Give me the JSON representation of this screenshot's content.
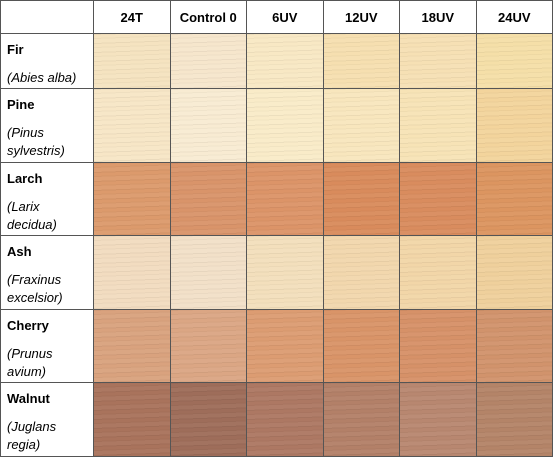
{
  "table": {
    "columns": [
      "24T",
      "Control 0",
      "6UV",
      "12UV",
      "18UV",
      "24UV"
    ],
    "rows": [
      {
        "name": "Fir",
        "latin": "(Abies alba)",
        "colors": [
          "#f5e3c0",
          "#f6e6cc",
          "#f8e8c4",
          "#f6dfb0",
          "#f6e0b4",
          "#f5dfa8"
        ]
      },
      {
        "name": "Pine",
        "latin": "(Pinus sylvestris)",
        "colors": [
          "#f7e6c6",
          "#f8ebd2",
          "#f9ebc8",
          "#f8e6bd",
          "#f7e3b6",
          "#f3d49c"
        ]
      },
      {
        "name": "Larch",
        "latin": "(Larix decidua)",
        "colors": [
          "#dc9a6c",
          "#d9946a",
          "#dc9468",
          "#d98b5c",
          "#d98c5e",
          "#dc9560"
        ]
      },
      {
        "name": "Ash",
        "latin": "(Fraxinus excelsior)",
        "colors": [
          "#f2dcc0",
          "#f2e0c8",
          "#f3dfbc",
          "#f2d7ad",
          "#f2d6a8",
          "#efd09c"
        ]
      },
      {
        "name": "Cherry",
        "latin": "(Prunus avium)",
        "colors": [
          "#d9a27e",
          "#dba684",
          "#dc9c72",
          "#d99468",
          "#d69168",
          "#d1936c"
        ]
      },
      {
        "name": "Walnut",
        "latin": "(Juglans regia)",
        "colors": [
          "#a9735c",
          "#9e6d5a",
          "#ad7863",
          "#b38068",
          "#b88770",
          "#b48468"
        ]
      }
    ]
  }
}
